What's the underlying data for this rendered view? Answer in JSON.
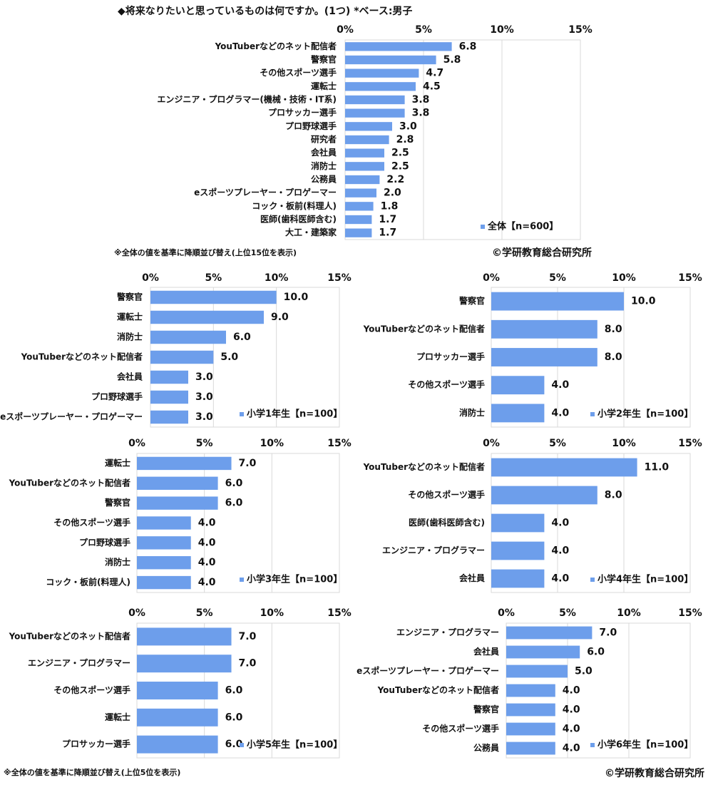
{
  "chart_data": [
    {
      "type": "hbar",
      "title": "◆将来なりたいと思っているものは何ですか。(1つ) *ベース:男子",
      "note": "※全体の値を基準に降順並び替え(上位15位を表示)",
      "source": "©学研教育総合研究所",
      "categories": [
        "YouTuberなどのネット配信者",
        "警察官",
        "その他スポーツ選手",
        "運転士",
        "エンジニア・プログラマー(機械・技術・IT系)",
        "プロサッカー選手",
        "プロ野球選手",
        "研究者",
        "会社員",
        "消防士",
        "公務員",
        "eスポーツプレーヤー・プロゲーマー",
        "コック・板前(料理人)",
        "医師(歯科医師含む)",
        "大工・建築家"
      ],
      "series": [
        {
          "name": "全体【n=600】",
          "color": "#6d9eeb",
          "values": [
            6.8,
            5.8,
            4.7,
            4.5,
            3.8,
            3.8,
            3.0,
            2.8,
            2.5,
            2.5,
            2.2,
            2.0,
            1.8,
            1.7,
            1.7
          ],
          "value_labels": [
            "6.8",
            "5.8",
            "4.7",
            "4.5",
            "3.8",
            "3.8",
            "3.0",
            "2.8",
            "2.5",
            "2.5",
            "2.2",
            "2.0",
            "1.8",
            "1.7",
            "1.7"
          ]
        }
      ],
      "xlim": [
        0,
        15
      ],
      "xticks": [
        {
          "value": 0,
          "label": "0%"
        },
        {
          "value": 5,
          "label": "5%"
        },
        {
          "value": 10,
          "label": "10%"
        },
        {
          "value": 15,
          "label": "15%"
        }
      ],
      "grid": true,
      "legend": "lower right"
    },
    {
      "type": "hbar",
      "categories": [
        "警察官",
        "運転士",
        "消防士",
        "YouTuberなどのネット配信者",
        "会社員",
        "プロ野球選手",
        "eスポーツプレーヤー・プロゲーマー"
      ],
      "series": [
        {
          "name": "小学1年生【n=100】",
          "color": "#6d9eeb",
          "values": [
            10.0,
            9.0,
            6.0,
            5.0,
            3.0,
            3.0,
            3.0
          ],
          "value_labels": [
            "10.0",
            "9.0",
            "6.0",
            "5.0",
            "3.0",
            "3.0",
            "3.0"
          ]
        }
      ],
      "xlim": [
        0,
        15
      ],
      "xticks": [
        {
          "value": 0,
          "label": "0%"
        },
        {
          "value": 5,
          "label": "5%"
        },
        {
          "value": 10,
          "label": "10%"
        },
        {
          "value": 15,
          "label": "15%"
        }
      ],
      "grid": true,
      "legend": "lower right"
    },
    {
      "type": "hbar",
      "categories": [
        "警察官",
        "YouTuberなどのネット配信者",
        "プロサッカー選手",
        "その他スポーツ選手",
        "消防士"
      ],
      "series": [
        {
          "name": "小学2年生【n=100】",
          "color": "#6d9eeb",
          "values": [
            10.0,
            8.0,
            8.0,
            4.0,
            4.0
          ],
          "value_labels": [
            "10.0",
            "8.0",
            "8.0",
            "4.0",
            "4.0"
          ]
        }
      ],
      "xlim": [
        0,
        15
      ],
      "xticks": [
        {
          "value": 0,
          "label": "0%"
        },
        {
          "value": 5,
          "label": "5%"
        },
        {
          "value": 10,
          "label": "10%"
        },
        {
          "value": 15,
          "label": "15%"
        }
      ],
      "grid": true,
      "legend": "lower right"
    },
    {
      "type": "hbar",
      "categories": [
        "運転士",
        "YouTuberなどのネット配信者",
        "警察官",
        "その他スポーツ選手",
        "プロ野球選手",
        "消防士",
        "コック・板前(料理人)"
      ],
      "series": [
        {
          "name": "小学3年生【n=100】",
          "color": "#6d9eeb",
          "values": [
            7.0,
            6.0,
            6.0,
            4.0,
            4.0,
            4.0,
            4.0
          ],
          "value_labels": [
            "7.0",
            "6.0",
            "6.0",
            "4.0",
            "4.0",
            "4.0",
            "4.0"
          ]
        }
      ],
      "xlim": [
        0,
        15
      ],
      "xticks": [
        {
          "value": 0,
          "label": "0%"
        },
        {
          "value": 5,
          "label": "5%"
        },
        {
          "value": 10,
          "label": "10%"
        },
        {
          "value": 15,
          "label": "15%"
        }
      ],
      "grid": true,
      "legend": "lower right"
    },
    {
      "type": "hbar",
      "categories": [
        "YouTuberなどのネット配信者",
        "その他スポーツ選手",
        "医師(歯科医師含む)",
        "エンジニア・プログラマー",
        "会社員"
      ],
      "series": [
        {
          "name": "小学4年生【n=100】",
          "color": "#6d9eeb",
          "values": [
            11.0,
            8.0,
            4.0,
            4.0,
            4.0
          ],
          "value_labels": [
            "11.0",
            "8.0",
            "4.0",
            "4.0",
            "4.0"
          ]
        }
      ],
      "xlim": [
        0,
        15
      ],
      "xticks": [
        {
          "value": 0,
          "label": "0%"
        },
        {
          "value": 5,
          "label": "5%"
        },
        {
          "value": 10,
          "label": "10%"
        },
        {
          "value": 15,
          "label": "15%"
        }
      ],
      "grid": true,
      "legend": "lower right"
    },
    {
      "type": "hbar",
      "categories": [
        "YouTuberなどのネット配信者",
        "エンジニア・プログラマー",
        "その他スポーツ選手",
        "運転士",
        "プロサッカー選手"
      ],
      "series": [
        {
          "name": "小学5年生【n=100】",
          "color": "#6d9eeb",
          "values": [
            7.0,
            7.0,
            6.0,
            6.0,
            6.0
          ],
          "value_labels": [
            "7.0",
            "7.0",
            "6.0",
            "6.0",
            "6.0"
          ]
        }
      ],
      "xlim": [
        0,
        15
      ],
      "xticks": [
        {
          "value": 0,
          "label": "0%"
        },
        {
          "value": 5,
          "label": "5%"
        },
        {
          "value": 10,
          "label": "10%"
        },
        {
          "value": 15,
          "label": "15%"
        }
      ],
      "grid": true,
      "legend": "lower right"
    },
    {
      "type": "hbar",
      "categories": [
        "エンジニア・プログラマー",
        "会社員",
        "eスポーツプレーヤー・プロゲーマー",
        "YouTuberなどのネット配信者",
        "警察官",
        "その他スポーツ選手",
        "公務員"
      ],
      "series": [
        {
          "name": "小学6年生【n=100】",
          "color": "#6d9eeb",
          "values": [
            7.0,
            6.0,
            5.0,
            4.0,
            4.0,
            4.0,
            4.0
          ],
          "value_labels": [
            "7.0",
            "6.0",
            "5.0",
            "4.0",
            "4.0",
            "4.0",
            "4.0"
          ]
        }
      ],
      "xlim": [
        0,
        15
      ],
      "xticks": [
        {
          "value": 0,
          "label": "0%"
        },
        {
          "value": 5,
          "label": "5%"
        },
        {
          "value": 10,
          "label": "10%"
        },
        {
          "value": 15,
          "label": "15%"
        }
      ],
      "grid": true,
      "legend": "lower right"
    }
  ],
  "footer": {
    "note": "※全体の値を基準に降順並び替え(上位5位を表示)",
    "source": "©学研教育総合研究所"
  }
}
